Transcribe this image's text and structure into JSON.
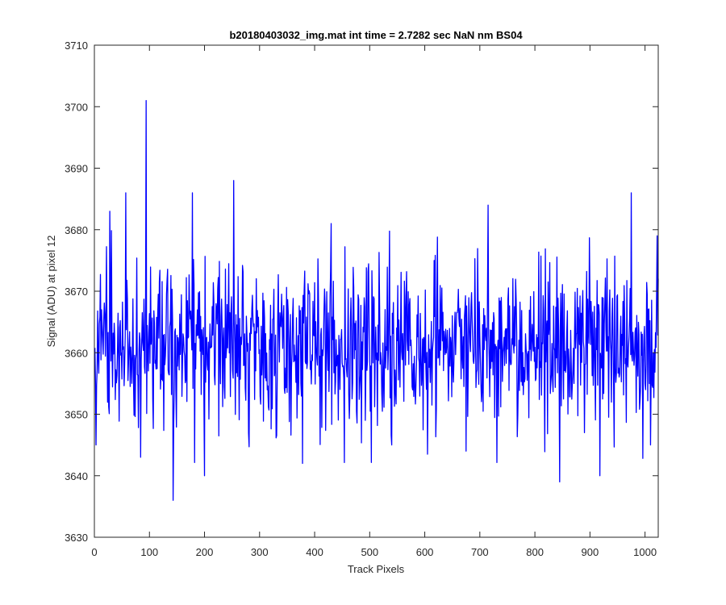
{
  "chart_data": {
    "type": "line",
    "title": "b20180403032_img.mat int time = 2.7282 sec  NaN nm BS04",
    "xlabel": "Track Pixels",
    "ylabel": "Signal (ADU) at pixel 12",
    "xlim": [
      0,
      1024
    ],
    "ylim": [
      3630,
      3710
    ],
    "xticks": [
      0,
      100,
      200,
      300,
      400,
      500,
      600,
      700,
      800,
      900,
      1000
    ],
    "yticks": [
      3630,
      3640,
      3650,
      3660,
      3670,
      3680,
      3690,
      3700,
      3710
    ],
    "grid": false,
    "legend": "none",
    "series": [
      {
        "color": "#0000ff",
        "x_start": 1,
        "x_step": 1,
        "count": 1024,
        "mean": 3661,
        "std": 6.5,
        "min": 3636,
        "max": 3701,
        "notable_points": [
          {
            "x": 3,
            "y": 3645
          },
          {
            "x": 28,
            "y": 3683
          },
          {
            "x": 57,
            "y": 3686
          },
          {
            "x": 84,
            "y": 3643
          },
          {
            "x": 94,
            "y": 3701
          },
          {
            "x": 143,
            "y": 3636
          },
          {
            "x": 178,
            "y": 3686
          },
          {
            "x": 200,
            "y": 3640
          },
          {
            "x": 253,
            "y": 3688
          },
          {
            "x": 378,
            "y": 3642
          },
          {
            "x": 430,
            "y": 3681
          },
          {
            "x": 540,
            "y": 3645
          },
          {
            "x": 675,
            "y": 3644
          },
          {
            "x": 715,
            "y": 3684
          },
          {
            "x": 845,
            "y": 3639
          },
          {
            "x": 918,
            "y": 3640
          },
          {
            "x": 975,
            "y": 3686
          },
          {
            "x": 1010,
            "y": 3645
          },
          {
            "x": 1022,
            "y": 3679
          }
        ]
      }
    ]
  }
}
